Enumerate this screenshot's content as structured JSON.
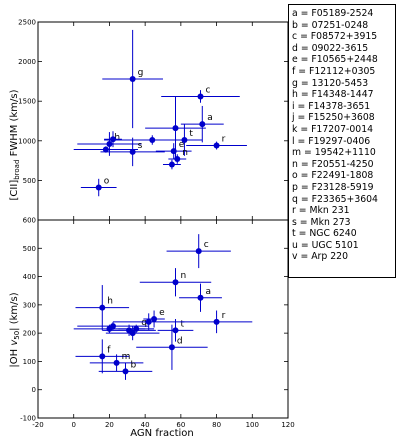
{
  "chart_data": [
    {
      "type": "scatter",
      "title": "",
      "xlabel": "",
      "ylabel": "[CII]_broad FWHM (km/s)",
      "ylabel_main": "[CII]",
      "ylabel_sub": "broad",
      "ylabel_rest": " FWHM (km/s)",
      "xlim": [
        -20,
        120
      ],
      "ylim": [
        0,
        2500
      ],
      "yticks": [
        0,
        500,
        1000,
        1500,
        2000,
        2500
      ],
      "xticklabels_visible": false,
      "points": [
        {
          "label": "a",
          "x": 72,
          "y": 1210,
          "xerr": 12,
          "yerr": 230
        },
        {
          "label": "c",
          "x": 71,
          "y": 1560,
          "xerr": 22,
          "yerr": 80
        },
        {
          "label": "g",
          "x": 33,
          "y": 1780,
          "xerr": 17,
          "yerr": 620
        },
        {
          "label": "r",
          "x": 80,
          "y": 940,
          "xerr": 17,
          "yerr": 50
        },
        {
          "label": "h",
          "x": 20,
          "y": 960,
          "xerr": 18,
          "yerr": 150
        },
        {
          "label": "s",
          "x": 33,
          "y": 860,
          "xerr": 18,
          "yerr": 180
        },
        {
          "label": "e",
          "x": 56,
          "y": 870,
          "xerr": 10,
          "yerr": 100
        },
        {
          "label": "t",
          "x": 62,
          "y": 1010,
          "xerr": 10,
          "yerr": 200
        },
        {
          "label": "",
          "x": 57,
          "y": 1160,
          "xerr": 17,
          "yerr": 400
        },
        {
          "label": "",
          "x": 44,
          "y": 1010,
          "xerr": 27,
          "yerr": 60
        },
        {
          "label": "",
          "x": 18,
          "y": 890,
          "xerr": 18,
          "yerr": 40
        },
        {
          "label": "",
          "x": 22,
          "y": 1020,
          "xerr": 5,
          "yerr": 100
        },
        {
          "label": "n",
          "x": 58,
          "y": 770,
          "xerr": 5,
          "yerr": 60
        },
        {
          "label": "",
          "x": 55,
          "y": 700,
          "xerr": 5,
          "yerr": 60
        },
        {
          "label": "o",
          "x": 14,
          "y": 410,
          "xerr": 10,
          "yerr": 110
        }
      ]
    },
    {
      "type": "scatter",
      "title": "",
      "xlabel": "AGN fraction",
      "ylabel": "|OH v50| (km/s)",
      "ylabel_main": "|OH ",
      "ylabel_var": "v",
      "ylabel_sub": "50",
      "ylabel_rest": "| (km/s)",
      "xlim": [
        -20,
        120
      ],
      "ylim": [
        -100,
        600
      ],
      "xticks": [
        -20,
        0,
        20,
        40,
        60,
        80,
        100,
        120
      ],
      "yticks": [
        -100,
        0,
        100,
        200,
        300,
        400,
        500,
        600
      ],
      "points": [
        {
          "label": "c",
          "x": 70,
          "y": 490,
          "xerr": 18,
          "yerr": 60
        },
        {
          "label": "n",
          "x": 57,
          "y": 380,
          "xerr": 20,
          "yerr": 50
        },
        {
          "label": "a",
          "x": 71,
          "y": 325,
          "xerr": 12,
          "yerr": 50
        },
        {
          "label": "h",
          "x": 16,
          "y": 290,
          "xerr": 15,
          "yerr": 80
        },
        {
          "label": "e",
          "x": 45,
          "y": 250,
          "xerr": 6,
          "yerr": 30
        },
        {
          "label": "r",
          "x": 80,
          "y": 240,
          "xerr": 20,
          "yerr": 40
        },
        {
          "label": "t",
          "x": 57,
          "y": 210,
          "xerr": 10,
          "yerr": 40
        },
        {
          "label": "q",
          "x": 35,
          "y": 215,
          "xerr": 10,
          "yerr": 15
        },
        {
          "label": "",
          "x": 22,
          "y": 225,
          "xerr": 20,
          "yerr": 15
        },
        {
          "label": "",
          "x": 20,
          "y": 215,
          "xerr": 20,
          "yerr": 15
        },
        {
          "label": "",
          "x": 31,
          "y": 210,
          "xerr": 15,
          "yerr": 20
        },
        {
          "label": "",
          "x": 33,
          "y": 200,
          "xerr": 15,
          "yerr": 25
        },
        {
          "label": "",
          "x": 42,
          "y": 240,
          "xerr": 20,
          "yerr": 30
        },
        {
          "label": "d",
          "x": 55,
          "y": 150,
          "xerr": 20,
          "yerr": 80
        },
        {
          "label": "f",
          "x": 16,
          "y": 118,
          "xerr": 15,
          "yerr": 60
        },
        {
          "label": "m",
          "x": 24,
          "y": 95,
          "xerr": 15,
          "yerr": 30
        },
        {
          "label": "b",
          "x": 29,
          "y": 65,
          "xerr": 15,
          "yerr": 30
        }
      ]
    }
  ],
  "legend": {
    "entries": [
      "a = F05189-2524",
      "b = 07251-0248",
      "c = F08572+3915",
      "d = 09022-3615",
      "e = F10565+2448",
      "f = F12112+0305",
      "g = 13120-5453",
      "h = F14348-1447",
      "i = F14378-3651",
      "j = F15250+3608",
      "k = F17207-0014",
      "l = F19297-0406",
      "m = 19542+1110",
      "n = F20551-4250",
      "o = F22491-1808",
      "p = F23128-5919",
      "q = F23365+3604",
      "r = Mkn 231",
      "s = Mkn 273",
      "t = NGC 6240",
      "u = UGC 5101",
      "v = Arp 220"
    ]
  },
  "colors": {
    "marker": "#0000cc",
    "errorbar": "#0000cc",
    "axes": "#000000",
    "background": "#ffffff"
  }
}
